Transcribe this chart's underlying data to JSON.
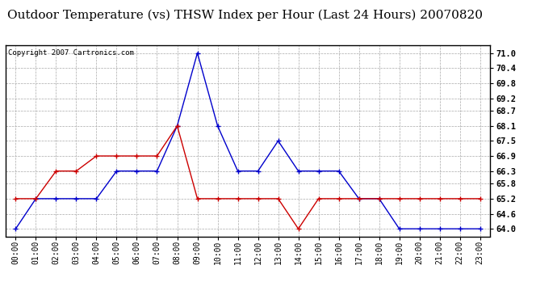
{
  "title": "Outdoor Temperature (vs) THSW Index per Hour (Last 24 Hours) 20070820",
  "copyright": "Copyright 2007 Cartronics.com",
  "hours": [
    "00:00",
    "01:00",
    "02:00",
    "03:00",
    "04:00",
    "05:00",
    "06:00",
    "07:00",
    "08:00",
    "09:00",
    "10:00",
    "11:00",
    "12:00",
    "13:00",
    "14:00",
    "15:00",
    "16:00",
    "17:00",
    "18:00",
    "19:00",
    "20:00",
    "21:00",
    "22:00",
    "23:00"
  ],
  "temp_red": [
    65.2,
    65.2,
    66.3,
    66.3,
    66.9,
    66.9,
    66.9,
    66.9,
    68.1,
    65.2,
    65.2,
    65.2,
    65.2,
    65.2,
    64.0,
    65.2,
    65.2,
    65.2,
    65.2,
    65.2,
    65.2,
    65.2,
    65.2,
    65.2
  ],
  "thsw_blue": [
    64.0,
    65.2,
    65.2,
    65.2,
    65.2,
    66.3,
    66.3,
    66.3,
    68.1,
    71.0,
    68.1,
    66.3,
    66.3,
    67.5,
    66.3,
    66.3,
    66.3,
    65.2,
    65.2,
    64.0,
    64.0,
    64.0,
    64.0,
    64.0
  ],
  "ylim_min": 63.7,
  "ylim_max": 71.3,
  "yticks": [
    64.0,
    64.6,
    65.2,
    65.8,
    66.3,
    66.9,
    67.5,
    68.1,
    68.7,
    69.2,
    69.8,
    70.4,
    71.0
  ],
  "bg_color": "#ffffff",
  "plot_bg": "#ffffff",
  "grid_color": "#aaaaaa",
  "red_color": "#cc0000",
  "blue_color": "#0000cc",
  "title_fontsize": 11,
  "copyright_fontsize": 6.5,
  "tick_fontsize": 7,
  "ytick_fontsize": 7.5
}
